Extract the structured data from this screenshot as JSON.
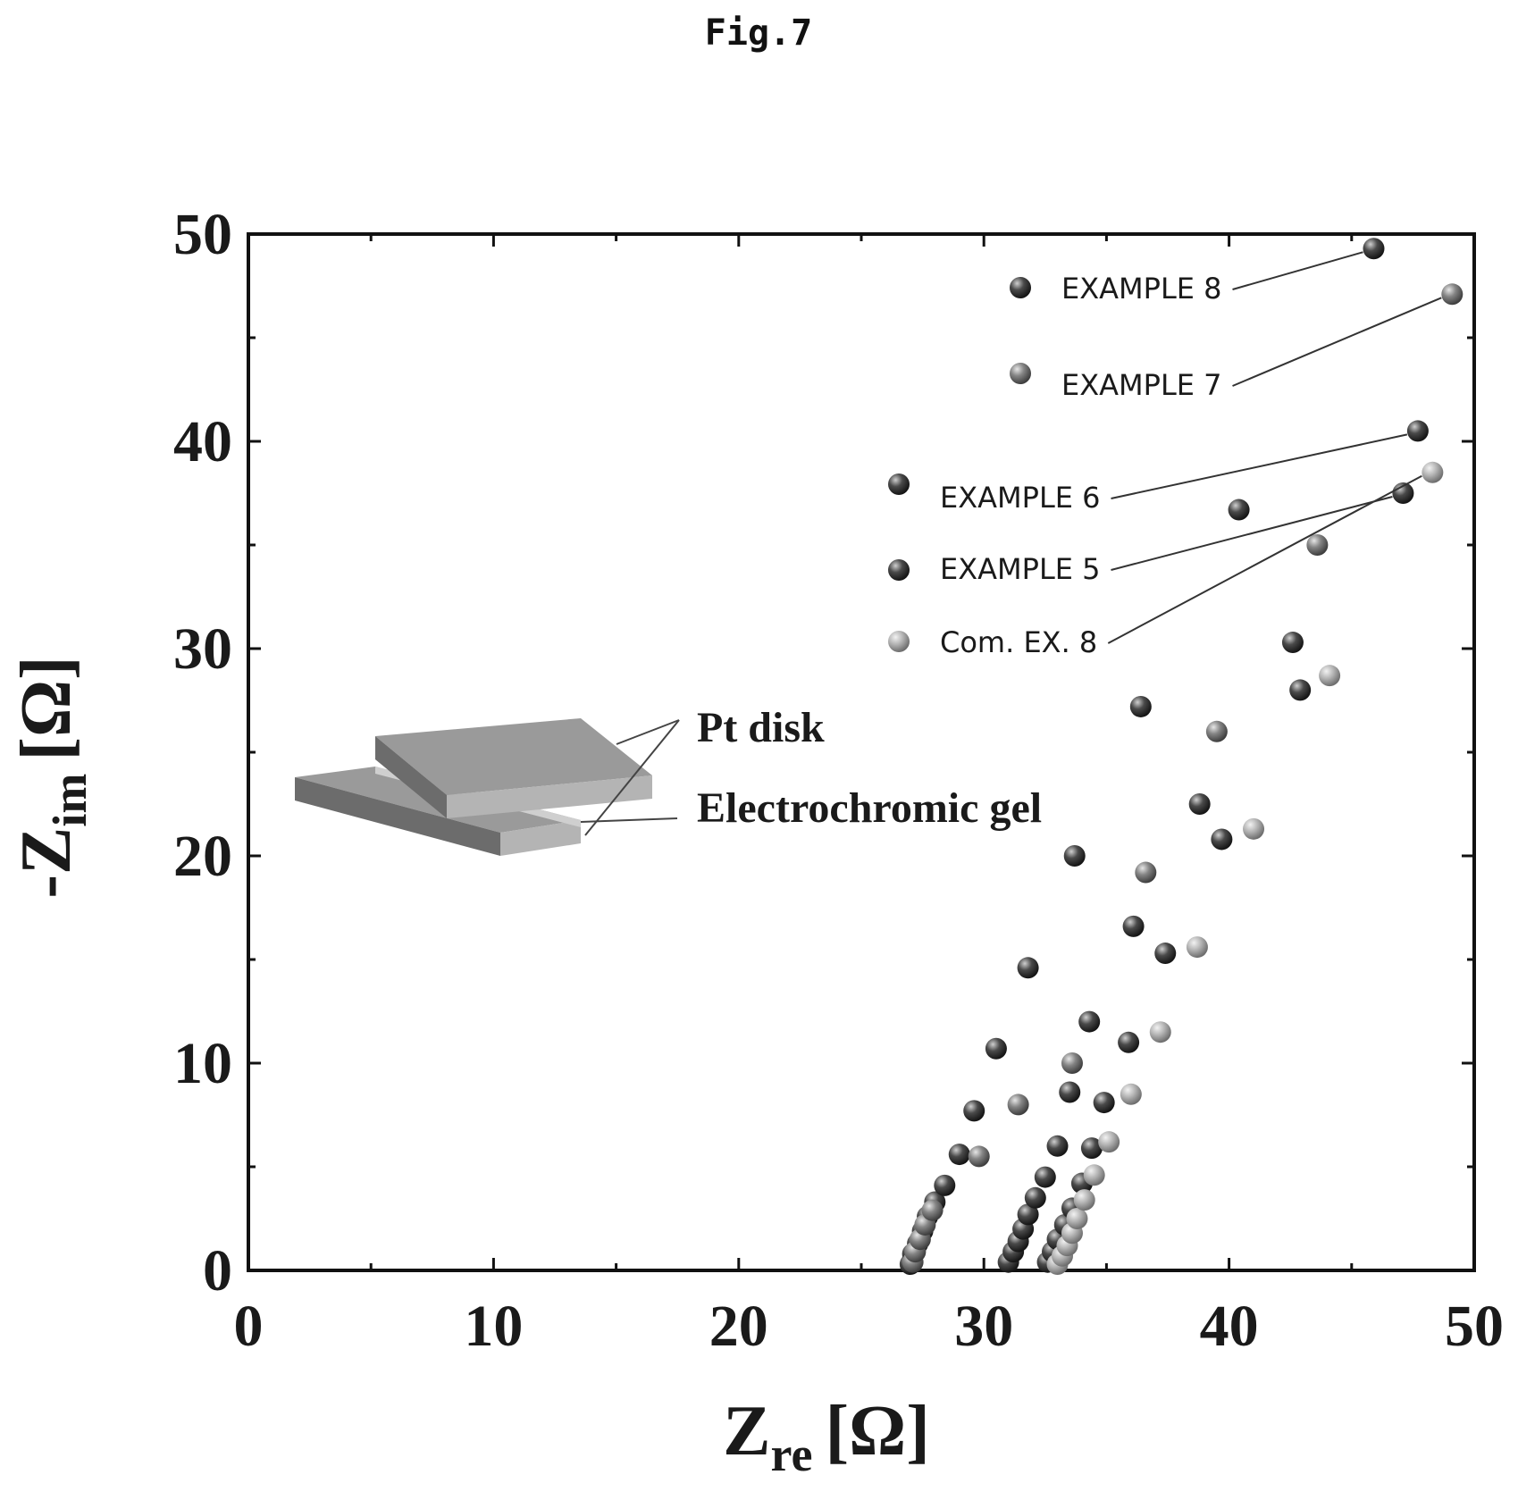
{
  "figure_label": "Fig.7",
  "colors": {
    "dark_marker": "#3a3a3a",
    "mid_marker": "#7a7a7a",
    "light_marker": "#a8a8a8",
    "axis": "#111111",
    "inset_fill": "#8c8c8c"
  },
  "chart_data": {
    "type": "scatter",
    "title": "",
    "xlabel": "Z",
    "xlabel_sub": "re",
    "xlabel_unit": "[Ω]",
    "ylabel": "-Z",
    "ylabel_sub": "im",
    "ylabel_unit": "[Ω]",
    "xlim": [
      0,
      50
    ],
    "ylim": [
      0,
      50
    ],
    "xticks": [
      0,
      10,
      20,
      30,
      40,
      50
    ],
    "yticks": [
      0,
      10,
      20,
      30,
      40,
      50
    ],
    "grid": false,
    "legend_placement": "top-right",
    "inset_labels": [
      "Pt disk",
      "Electrochromic gel"
    ],
    "series": [
      {
        "name": "EXAMPLE 8",
        "color": "#3a3a3a",
        "x": [
          27.0,
          27.1,
          27.3,
          27.5,
          27.7,
          28.0,
          28.4,
          29.0,
          29.6,
          30.5,
          31.8,
          33.7,
          36.4,
          40.4,
          45.9
        ],
        "y": [
          0.3,
          0.8,
          1.3,
          1.9,
          2.6,
          3.3,
          4.1,
          5.6,
          7.7,
          10.7,
          14.6,
          20.0,
          27.2,
          36.7,
          49.3
        ]
      },
      {
        "name": "EXAMPLE 7",
        "color": "#7a7a7a",
        "x": [
          27.1,
          27.2,
          27.4,
          27.6,
          27.9,
          29.8,
          31.4,
          33.6,
          36.6,
          39.5,
          43.6,
          49.1
        ],
        "y": [
          0.4,
          0.9,
          1.5,
          2.2,
          2.9,
          5.5,
          8.0,
          10.0,
          19.2,
          26.0,
          35.0,
          47.1
        ]
      },
      {
        "name": "EXAMPLE 6",
        "color": "#3a3a3a",
        "x": [
          31.0,
          31.2,
          31.4,
          31.6,
          31.8,
          32.1,
          32.5,
          33.0,
          33.5,
          34.3,
          36.1,
          38.8,
          42.6,
          47.7
        ],
        "y": [
          0.4,
          0.9,
          1.4,
          2.0,
          2.7,
          3.5,
          4.5,
          6.0,
          8.6,
          12.0,
          16.6,
          22.5,
          30.3,
          40.5
        ]
      },
      {
        "name": "EXAMPLE 5",
        "color": "#3a3a3a",
        "x": [
          32.6,
          32.8,
          33.0,
          33.3,
          33.6,
          34.0,
          34.4,
          34.9,
          35.9,
          37.4,
          39.7,
          42.9,
          47.1
        ],
        "y": [
          0.4,
          0.9,
          1.5,
          2.2,
          3.0,
          4.2,
          5.9,
          8.1,
          11.0,
          15.3,
          20.8,
          28.0,
          37.5
        ]
      },
      {
        "name": "Com. EX. 8",
        "color": "#a8a8a8",
        "x": [
          33.0,
          33.2,
          33.4,
          33.6,
          33.8,
          34.1,
          34.5,
          35.1,
          36.0,
          37.2,
          38.7,
          41.0,
          44.1,
          48.3
        ],
        "y": [
          0.3,
          0.7,
          1.2,
          1.8,
          2.5,
          3.4,
          4.6,
          6.2,
          8.5,
          11.5,
          15.6,
          21.3,
          28.7,
          38.5
        ]
      }
    ]
  }
}
